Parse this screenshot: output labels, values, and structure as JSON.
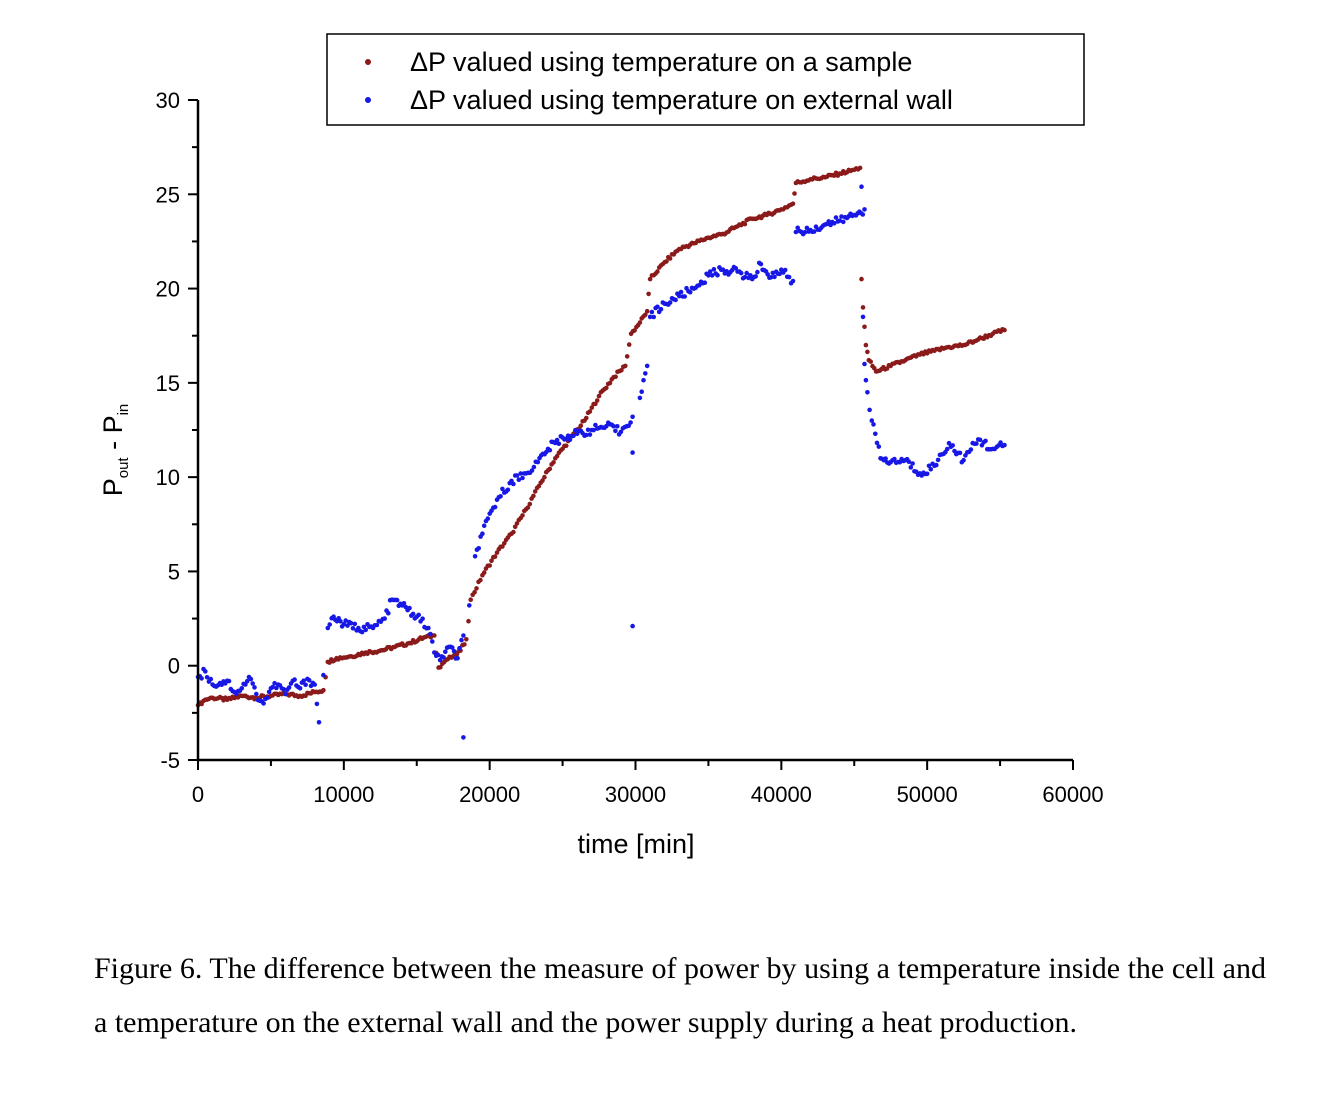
{
  "chart_data": {
    "type": "scatter",
    "title": "",
    "xlabel": "time [min]",
    "ylabel": {
      "main": "P",
      "sub1": "out",
      "sep": " - P",
      "sub2": "in"
    },
    "xlim": [
      0,
      60000
    ],
    "ylim": [
      -5,
      30
    ],
    "x_ticks": [
      0,
      10000,
      20000,
      30000,
      40000,
      50000,
      60000
    ],
    "y_ticks": [
      -5,
      0,
      5,
      10,
      15,
      20,
      25,
      30
    ],
    "legend_position": "top-center",
    "series": [
      {
        "name": "ΔP valued using temperature on a sample",
        "color": "#8b1a1a",
        "points": [
          [
            0,
            -2.1
          ],
          [
            500,
            -1.8
          ],
          [
            1000,
            -1.7
          ],
          [
            2000,
            -1.8
          ],
          [
            3000,
            -1.6
          ],
          [
            4000,
            -1.7
          ],
          [
            5000,
            -1.6
          ],
          [
            6000,
            -1.5
          ],
          [
            7000,
            -1.6
          ],
          [
            8000,
            -1.4
          ],
          [
            8600,
            -1.3
          ],
          [
            8900,
            0.2
          ],
          [
            9500,
            0.4
          ],
          [
            10500,
            0.5
          ],
          [
            11500,
            0.7
          ],
          [
            12500,
            0.8
          ],
          [
            13500,
            1.0
          ],
          [
            14500,
            1.2
          ],
          [
            15500,
            1.5
          ],
          [
            16200,
            1.6
          ],
          [
            16500,
            -0.1
          ],
          [
            17000,
            0.3
          ],
          [
            17500,
            0.5
          ],
          [
            18000,
            0.8
          ],
          [
            18400,
            1.4
          ],
          [
            18700,
            3.5
          ],
          [
            19500,
            4.8
          ],
          [
            20500,
            6.0
          ],
          [
            21500,
            7.0
          ],
          [
            22500,
            8.3
          ],
          [
            23500,
            9.7
          ],
          [
            24500,
            11.0
          ],
          [
            25500,
            12.0
          ],
          [
            26500,
            13.0
          ],
          [
            27500,
            14.3
          ],
          [
            28500,
            15.3
          ],
          [
            29300,
            15.9
          ],
          [
            29700,
            17.6
          ],
          [
            30300,
            18.2
          ],
          [
            30800,
            18.8
          ],
          [
            31000,
            20.5
          ],
          [
            32000,
            21.4
          ],
          [
            33000,
            22.1
          ],
          [
            34000,
            22.4
          ],
          [
            35000,
            22.7
          ],
          [
            36000,
            22.9
          ],
          [
            37000,
            23.3
          ],
          [
            38000,
            23.7
          ],
          [
            39000,
            23.9
          ],
          [
            40000,
            24.2
          ],
          [
            40800,
            24.5
          ],
          [
            41000,
            25.6
          ],
          [
            42000,
            25.8
          ],
          [
            43000,
            25.9
          ],
          [
            44000,
            26.1
          ],
          [
            45000,
            26.3
          ],
          [
            45400,
            26.4
          ],
          [
            45500,
            28.9
          ],
          [
            45500,
            20.5
          ],
          [
            45600,
            19.0
          ],
          [
            45800,
            17.0
          ],
          [
            46000,
            16.2
          ],
          [
            46500,
            15.6
          ],
          [
            47500,
            15.9
          ],
          [
            48500,
            16.2
          ],
          [
            49500,
            16.5
          ],
          [
            50500,
            16.7
          ],
          [
            51500,
            16.9
          ],
          [
            52500,
            17.0
          ],
          [
            53500,
            17.3
          ],
          [
            54500,
            17.6
          ],
          [
            55300,
            17.8
          ]
        ]
      },
      {
        "name": "ΔP valued using temperature on external wall",
        "color": "#1818e6",
        "points": [
          [
            0,
            -0.6
          ],
          [
            500,
            -0.3
          ],
          [
            1000,
            -1.0
          ],
          [
            2000,
            -0.8
          ],
          [
            2500,
            -1.4
          ],
          [
            3000,
            -1.2
          ],
          [
            3500,
            -0.6
          ],
          [
            4000,
            -1.5
          ],
          [
            4500,
            -2.0
          ],
          [
            5000,
            -1.2
          ],
          [
            5500,
            -1.0
          ],
          [
            6000,
            -1.5
          ],
          [
            6500,
            -0.8
          ],
          [
            7000,
            -1.2
          ],
          [
            7500,
            -0.7
          ],
          [
            8000,
            -1.0
          ],
          [
            8300,
            -3.0
          ],
          [
            8600,
            -0.5
          ],
          [
            8900,
            2.0
          ],
          [
            9300,
            2.6
          ],
          [
            10000,
            2.2
          ],
          [
            11000,
            2.0
          ],
          [
            12000,
            2.0
          ],
          [
            12800,
            2.5
          ],
          [
            13300,
            3.5
          ],
          [
            14000,
            3.2
          ],
          [
            15000,
            2.6
          ],
          [
            15800,
            2.0
          ],
          [
            16200,
            0.7
          ],
          [
            16600,
            0.3
          ],
          [
            17200,
            1.0
          ],
          [
            17800,
            0.4
          ],
          [
            18200,
            1.6
          ],
          [
            18200,
            -3.8
          ],
          [
            18600,
            3.2
          ],
          [
            19000,
            5.8
          ],
          [
            19500,
            7.0
          ],
          [
            20500,
            8.8
          ],
          [
            21500,
            9.8
          ],
          [
            22500,
            10.2
          ],
          [
            23300,
            10.8
          ],
          [
            24000,
            11.5
          ],
          [
            25000,
            12.1
          ],
          [
            26000,
            12.3
          ],
          [
            27000,
            12.5
          ],
          [
            28000,
            12.7
          ],
          [
            29000,
            12.4
          ],
          [
            29800,
            13.2
          ],
          [
            29800,
            11.3
          ],
          [
            29800,
            2.1
          ],
          [
            30300,
            14.2
          ],
          [
            30800,
            15.9
          ],
          [
            31000,
            18.5
          ],
          [
            32000,
            19.2
          ],
          [
            33000,
            19.6
          ],
          [
            34000,
            20.0
          ],
          [
            35000,
            20.7
          ],
          [
            36000,
            21.0
          ],
          [
            37000,
            20.9
          ],
          [
            38000,
            20.5
          ],
          [
            38600,
            21.3
          ],
          [
            39300,
            20.6
          ],
          [
            40000,
            21.0
          ],
          [
            40800,
            20.4
          ],
          [
            41000,
            23.0
          ],
          [
            42000,
            23.1
          ],
          [
            43000,
            23.4
          ],
          [
            44000,
            23.6
          ],
          [
            45000,
            23.9
          ],
          [
            45700,
            24.2
          ],
          [
            45500,
            25.4
          ],
          [
            45600,
            18.5
          ],
          [
            45700,
            16.0
          ],
          [
            45900,
            14.5
          ],
          [
            46200,
            13.0
          ],
          [
            46800,
            11.0
          ],
          [
            47500,
            10.8
          ],
          [
            48500,
            10.9
          ],
          [
            49500,
            10.2
          ],
          [
            50500,
            10.6
          ],
          [
            51500,
            11.8
          ],
          [
            52500,
            10.9
          ],
          [
            53500,
            12.0
          ],
          [
            54500,
            11.5
          ],
          [
            55300,
            11.7
          ]
        ]
      }
    ]
  },
  "caption": "Figure 6. The difference between the measure of power by using a temperature inside the cell and a temperature on the external wall and the power supply during a heat production."
}
